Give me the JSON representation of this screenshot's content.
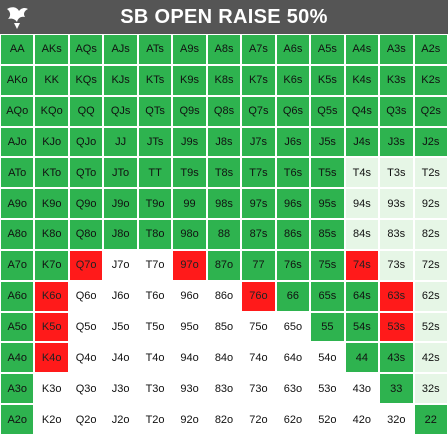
{
  "header": {
    "title": "SB OPEN RAISE 50%",
    "logo_icon": "card-suit-logo-icon",
    "background": "#555555"
  },
  "colors": {
    "raise": "#2eb34f",
    "fold": "#ffffff",
    "light": "#e6f6e6",
    "red": "#ff1a1a"
  },
  "grid": {
    "rows": [
      [
        [
          "AA",
          "raise"
        ],
        [
          "AKs",
          "raise"
        ],
        [
          "AQs",
          "raise"
        ],
        [
          "AJs",
          "raise"
        ],
        [
          "ATs",
          "raise"
        ],
        [
          "A9s",
          "raise"
        ],
        [
          "A8s",
          "raise"
        ],
        [
          "A7s",
          "raise"
        ],
        [
          "A6s",
          "raise"
        ],
        [
          "A5s",
          "raise"
        ],
        [
          "A4s",
          "raise"
        ],
        [
          "A3s",
          "raise"
        ],
        [
          "A2s",
          "raise"
        ]
      ],
      [
        [
          "AKo",
          "raise"
        ],
        [
          "KK",
          "raise"
        ],
        [
          "KQs",
          "raise"
        ],
        [
          "KJs",
          "raise"
        ],
        [
          "KTs",
          "raise"
        ],
        [
          "K9s",
          "raise"
        ],
        [
          "K8s",
          "raise"
        ],
        [
          "K7s",
          "raise"
        ],
        [
          "K6s",
          "raise"
        ],
        [
          "K5s",
          "raise"
        ],
        [
          "K4s",
          "raise"
        ],
        [
          "K3s",
          "raise"
        ],
        [
          "K2s",
          "raise"
        ]
      ],
      [
        [
          "AQo",
          "raise"
        ],
        [
          "KQo",
          "raise"
        ],
        [
          "QQ",
          "raise"
        ],
        [
          "QJs",
          "raise"
        ],
        [
          "QTs",
          "raise"
        ],
        [
          "Q9s",
          "raise"
        ],
        [
          "Q8s",
          "raise"
        ],
        [
          "Q7s",
          "raise"
        ],
        [
          "Q6s",
          "raise"
        ],
        [
          "Q5s",
          "raise"
        ],
        [
          "Q4s",
          "raise"
        ],
        [
          "Q3s",
          "raise"
        ],
        [
          "Q2s",
          "raise"
        ]
      ],
      [
        [
          "AJo",
          "raise"
        ],
        [
          "KJo",
          "raise"
        ],
        [
          "QJo",
          "raise"
        ],
        [
          "JJ",
          "raise"
        ],
        [
          "JTs",
          "raise"
        ],
        [
          "J9s",
          "raise"
        ],
        [
          "J8s",
          "raise"
        ],
        [
          "J7s",
          "raise"
        ],
        [
          "J6s",
          "raise"
        ],
        [
          "J5s",
          "raise"
        ],
        [
          "J4s",
          "raise"
        ],
        [
          "J3s",
          "raise"
        ],
        [
          "J2s",
          "raise"
        ]
      ],
      [
        [
          "ATo",
          "raise"
        ],
        [
          "KTo",
          "raise"
        ],
        [
          "QTo",
          "raise"
        ],
        [
          "JTo",
          "raise"
        ],
        [
          "TT",
          "raise"
        ],
        [
          "T9s",
          "raise"
        ],
        [
          "T8s",
          "raise"
        ],
        [
          "T7s",
          "raise"
        ],
        [
          "T6s",
          "raise"
        ],
        [
          "T5s",
          "raise"
        ],
        [
          "T4s",
          "light"
        ],
        [
          "T3s",
          "light"
        ],
        [
          "T2s",
          "light"
        ]
      ],
      [
        [
          "A9o",
          "raise"
        ],
        [
          "K9o",
          "raise"
        ],
        [
          "Q9o",
          "raise"
        ],
        [
          "J9o",
          "raise"
        ],
        [
          "T9o",
          "raise"
        ],
        [
          "99",
          "raise"
        ],
        [
          "98s",
          "raise"
        ],
        [
          "97s",
          "raise"
        ],
        [
          "96s",
          "raise"
        ],
        [
          "95s",
          "raise"
        ],
        [
          "94s",
          "light"
        ],
        [
          "93s",
          "light"
        ],
        [
          "92s",
          "light"
        ]
      ],
      [
        [
          "A8o",
          "raise"
        ],
        [
          "K8o",
          "raise"
        ],
        [
          "Q8o",
          "raise"
        ],
        [
          "J8o",
          "raise"
        ],
        [
          "T8o",
          "raise"
        ],
        [
          "98o",
          "raise"
        ],
        [
          "88",
          "raise"
        ],
        [
          "87s",
          "raise"
        ],
        [
          "86s",
          "raise"
        ],
        [
          "85s",
          "raise"
        ],
        [
          "84s",
          "light"
        ],
        [
          "83s",
          "light"
        ],
        [
          "82s",
          "light"
        ]
      ],
      [
        [
          "A7o",
          "raise"
        ],
        [
          "K7o",
          "raise"
        ],
        [
          "Q7o",
          "red"
        ],
        [
          "J7o",
          "fold"
        ],
        [
          "T7o",
          "fold"
        ],
        [
          "97o",
          "red"
        ],
        [
          "87o",
          "raise"
        ],
        [
          "77",
          "raise"
        ],
        [
          "76s",
          "raise"
        ],
        [
          "75s",
          "raise"
        ],
        [
          "74s",
          "red"
        ],
        [
          "73s",
          "light"
        ],
        [
          "72s",
          "light"
        ]
      ],
      [
        [
          "A6o",
          "raise"
        ],
        [
          "K6o",
          "red"
        ],
        [
          "Q6o",
          "fold"
        ],
        [
          "J6o",
          "fold"
        ],
        [
          "T6o",
          "fold"
        ],
        [
          "96o",
          "fold"
        ],
        [
          "86o",
          "fold"
        ],
        [
          "76o",
          "red"
        ],
        [
          "66",
          "raise"
        ],
        [
          "65s",
          "raise"
        ],
        [
          "64s",
          "raise"
        ],
        [
          "63s",
          "red"
        ],
        [
          "62s",
          "light"
        ]
      ],
      [
        [
          "A5o",
          "raise"
        ],
        [
          "K5o",
          "red"
        ],
        [
          "Q5o",
          "fold"
        ],
        [
          "J5o",
          "fold"
        ],
        [
          "T5o",
          "fold"
        ],
        [
          "95o",
          "fold"
        ],
        [
          "85o",
          "fold"
        ],
        [
          "75o",
          "fold"
        ],
        [
          "65o",
          "fold"
        ],
        [
          "55",
          "raise"
        ],
        [
          "54s",
          "raise"
        ],
        [
          "53s",
          "red"
        ],
        [
          "52s",
          "light"
        ]
      ],
      [
        [
          "A4o",
          "raise"
        ],
        [
          "K4o",
          "red"
        ],
        [
          "Q4o",
          "fold"
        ],
        [
          "J4o",
          "fold"
        ],
        [
          "T4o",
          "fold"
        ],
        [
          "94o",
          "fold"
        ],
        [
          "84o",
          "fold"
        ],
        [
          "74o",
          "fold"
        ],
        [
          "64o",
          "fold"
        ],
        [
          "54o",
          "fold"
        ],
        [
          "44",
          "raise"
        ],
        [
          "43s",
          "raise"
        ],
        [
          "42s",
          "light"
        ]
      ],
      [
        [
          "A3o",
          "raise"
        ],
        [
          "K3o",
          "fold"
        ],
        [
          "Q3o",
          "fold"
        ],
        [
          "J3o",
          "fold"
        ],
        [
          "T3o",
          "fold"
        ],
        [
          "93o",
          "fold"
        ],
        [
          "83o",
          "fold"
        ],
        [
          "73o",
          "fold"
        ],
        [
          "63o",
          "fold"
        ],
        [
          "53o",
          "fold"
        ],
        [
          "43o",
          "fold"
        ],
        [
          "33",
          "raise"
        ],
        [
          "32s",
          "light"
        ]
      ],
      [
        [
          "A2o",
          "raise"
        ],
        [
          "K2o",
          "fold"
        ],
        [
          "Q2o",
          "fold"
        ],
        [
          "J2o",
          "fold"
        ],
        [
          "T2o",
          "fold"
        ],
        [
          "92o",
          "fold"
        ],
        [
          "82o",
          "fold"
        ],
        [
          "72o",
          "fold"
        ],
        [
          "62o",
          "fold"
        ],
        [
          "52o",
          "fold"
        ],
        [
          "42o",
          "fold"
        ],
        [
          "32o",
          "fold"
        ],
        [
          "22",
          "raise"
        ]
      ]
    ]
  }
}
